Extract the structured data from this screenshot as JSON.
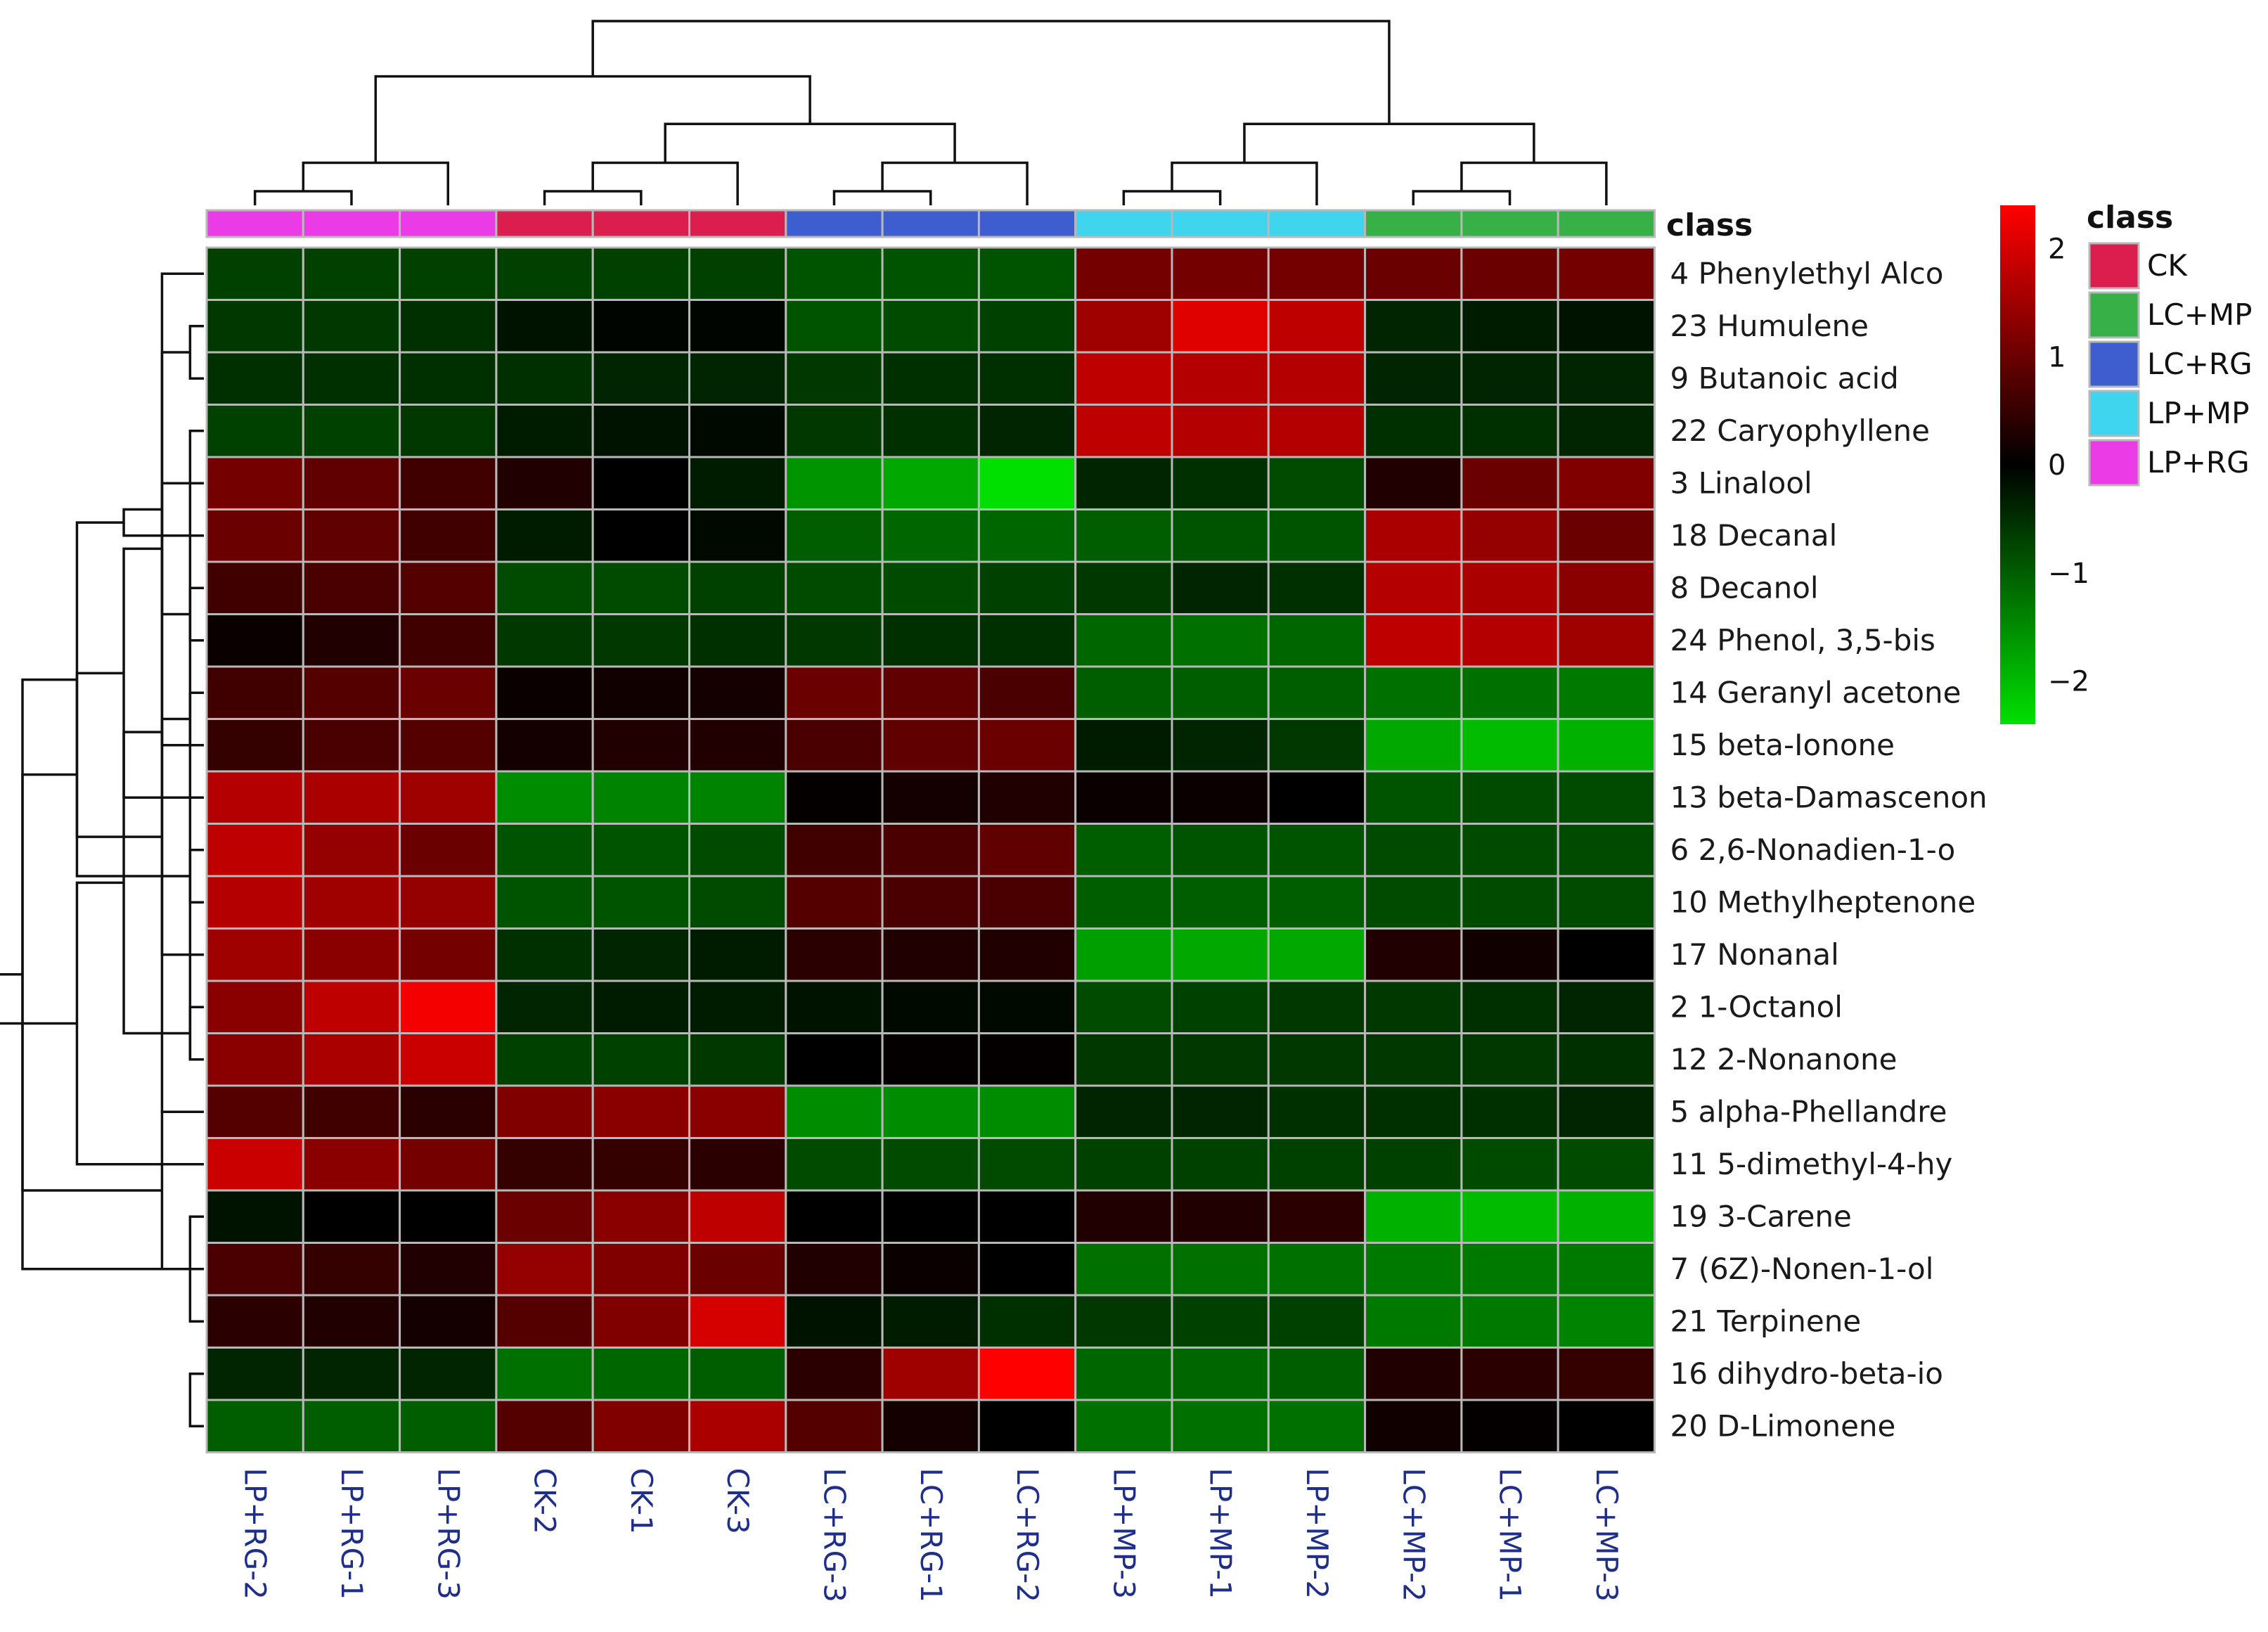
{
  "chart_data": {
    "type": "heatmap",
    "title": "",
    "class_bar_title": "class",
    "legend_title": "class",
    "columns": [
      "LP+RG-2",
      "LP+RG-1",
      "LP+RG-3",
      "CK-2",
      "CK-1",
      "CK-3",
      "LC+RG-3",
      "LC+RG-1",
      "LC+RG-2",
      "LP+MP-3",
      "LP+MP-1",
      "LP+MP-2",
      "LC+MP-2",
      "LC+MP-1",
      "LC+MP-3"
    ],
    "column_classes": [
      "LP+RG",
      "LP+RG",
      "LP+RG",
      "CK",
      "CK",
      "CK",
      "LC+RG",
      "LC+RG",
      "LC+RG",
      "LP+MP",
      "LP+MP",
      "LP+MP",
      "LC+MP",
      "LC+MP",
      "LC+MP"
    ],
    "rows": [
      "4 Phenylethyl Alco",
      "23 Humulene",
      "9 Butanoic acid",
      "22 Caryophyllene",
      "3 Linalool",
      "18 Decanal",
      "8 Decanol",
      "24 Phenol, 3,5-bis",
      "14 Geranyl acetone",
      "15 beta-Ionone",
      "13 beta-Damascenon",
      "6 2,6-Nonadien-1-o",
      "10 Methylheptenone",
      "17 Nonanal",
      "2 1-Octanol",
      "12 2-Nonanone",
      "5 alpha-Phellandre",
      "11 5-dimethyl-4-hy",
      "19 3-Carene",
      "7 (6Z)-Nonen-1-ol",
      "21 Terpinene",
      "16 dihydro-beta-io",
      "20 D-Limonene"
    ],
    "values": [
      [
        -0.7,
        -0.7,
        -0.7,
        -0.7,
        -0.7,
        -0.7,
        -0.9,
        -0.9,
        -0.9,
        1.1,
        1.1,
        1.1,
        1.0,
        1.0,
        1.1
      ],
      [
        -0.6,
        -0.6,
        -0.5,
        -0.2,
        -0.05,
        -0.05,
        -0.9,
        -0.8,
        -0.7,
        1.5,
        2.1,
        1.8,
        -0.4,
        -0.3,
        -0.2
      ],
      [
        -0.5,
        -0.5,
        -0.5,
        -0.5,
        -0.4,
        -0.4,
        -0.6,
        -0.5,
        -0.5,
        1.8,
        1.7,
        1.7,
        -0.4,
        -0.4,
        -0.4
      ],
      [
        -0.7,
        -0.7,
        -0.6,
        -0.3,
        -0.2,
        -0.1,
        -0.6,
        -0.5,
        -0.4,
        1.8,
        1.7,
        1.7,
        -0.5,
        -0.5,
        -0.4
      ],
      [
        1.1,
        0.9,
        0.6,
        0.3,
        0.0,
        -0.3,
        -1.6,
        -1.8,
        -2.4,
        -0.4,
        -0.5,
        -0.8,
        0.3,
        1.0,
        1.2
      ],
      [
        1.0,
        0.9,
        0.6,
        -0.3,
        0.0,
        -0.1,
        -1.0,
        -1.1,
        -1.1,
        -1.0,
        -0.9,
        -0.9,
        1.6,
        1.4,
        1.0
      ],
      [
        0.6,
        0.7,
        0.8,
        -0.8,
        -0.8,
        -0.7,
        -0.8,
        -0.8,
        -0.7,
        -0.6,
        -0.4,
        -0.5,
        1.7,
        1.6,
        1.3
      ],
      [
        0.1,
        0.3,
        0.6,
        -0.6,
        -0.6,
        -0.5,
        -0.6,
        -0.5,
        -0.5,
        -1.1,
        -1.2,
        -1.1,
        1.8,
        1.7,
        1.5
      ],
      [
        0.6,
        0.8,
        1.0,
        0.1,
        0.15,
        0.2,
        1.0,
        0.9,
        0.7,
        -1.0,
        -1.0,
        -1.0,
        -1.2,
        -1.2,
        -1.3
      ],
      [
        0.5,
        0.7,
        0.8,
        0.2,
        0.3,
        0.3,
        0.7,
        0.9,
        1.0,
        -0.3,
        -0.4,
        -0.6,
        -1.8,
        -2.0,
        -1.9
      ],
      [
        1.7,
        1.6,
        1.5,
        -1.5,
        -1.4,
        -1.4,
        0.05,
        0.2,
        0.3,
        0.1,
        0.1,
        0.0,
        -0.9,
        -0.8,
        -0.8
      ],
      [
        1.8,
        1.4,
        1.0,
        -0.9,
        -0.9,
        -0.8,
        0.6,
        0.7,
        0.9,
        -1.0,
        -0.9,
        -0.9,
        -0.8,
        -0.8,
        -0.8
      ],
      [
        1.7,
        1.5,
        1.4,
        -0.9,
        -0.9,
        -0.8,
        0.8,
        0.7,
        0.7,
        -1.0,
        -1.0,
        -1.0,
        -0.8,
        -0.8,
        -0.8
      ],
      [
        1.5,
        1.3,
        1.1,
        -0.5,
        -0.4,
        -0.3,
        0.4,
        0.3,
        0.3,
        -1.7,
        -1.8,
        -1.8,
        0.3,
        0.15,
        0.0
      ],
      [
        1.3,
        1.8,
        2.3,
        -0.4,
        -0.3,
        -0.3,
        -0.2,
        -0.1,
        -0.1,
        -0.8,
        -0.7,
        -0.6,
        -0.6,
        -0.5,
        -0.4
      ],
      [
        1.3,
        1.6,
        1.9,
        -0.7,
        -0.7,
        -0.6,
        0.0,
        0.05,
        0.05,
        -0.6,
        -0.6,
        -0.6,
        -0.6,
        -0.6,
        -0.5
      ],
      [
        0.8,
        0.6,
        0.4,
        1.2,
        1.3,
        1.3,
        -1.5,
        -1.5,
        -1.5,
        -0.4,
        -0.4,
        -0.5,
        -0.5,
        -0.5,
        -0.4
      ],
      [
        1.9,
        1.3,
        1.1,
        0.5,
        0.5,
        0.4,
        -0.8,
        -0.8,
        -0.8,
        -0.7,
        -0.7,
        -0.7,
        -0.7,
        -0.8,
        -0.8
      ],
      [
        -0.2,
        0.0,
        0.0,
        1.0,
        1.3,
        1.8,
        0.0,
        0.0,
        0.0,
        0.3,
        0.3,
        0.4,
        -1.9,
        -2.0,
        -1.9
      ],
      [
        0.7,
        0.5,
        0.3,
        1.4,
        1.2,
        1.0,
        0.3,
        0.1,
        0.0,
        -1.2,
        -1.2,
        -1.2,
        -1.3,
        -1.3,
        -1.3
      ],
      [
        0.4,
        0.3,
        0.2,
        0.8,
        1.2,
        2.0,
        -0.2,
        -0.3,
        -0.5,
        -0.6,
        -0.7,
        -0.7,
        -1.3,
        -1.3,
        -1.4
      ],
      [
        -0.4,
        -0.4,
        -0.4,
        -1.2,
        -1.1,
        -1.0,
        0.4,
        1.5,
        2.5,
        -1.1,
        -1.1,
        -1.0,
        0.3,
        0.4,
        0.5
      ],
      [
        -1.0,
        -1.0,
        -1.0,
        0.8,
        1.2,
        1.6,
        0.8,
        0.2,
        0.0,
        -1.2,
        -1.2,
        -1.2,
        0.15,
        0.05,
        0.0
      ]
    ],
    "color_scale": {
      "ticks": [
        "2",
        "1",
        "0",
        "−1",
        "−2"
      ],
      "tick_values": [
        2,
        1,
        0,
        -1,
        -2
      ],
      "min": -2.4,
      "max": 2.4,
      "low_color": "#00e000",
      "mid_color": "#000000",
      "high_color": "#ff0000"
    },
    "classes": [
      {
        "name": "CK",
        "color": "#dc1e4e"
      },
      {
        "name": "LC+MP",
        "color": "#38b048"
      },
      {
        "name": "LC+RG",
        "color": "#3e5dcf"
      },
      {
        "name": "LP+MP",
        "color": "#3fd5ee"
      },
      {
        "name": "LP+RG",
        "color": "#ea3be6"
      }
    ],
    "column_tree": [
      [
        0,
        1
      ],
      [
        15,
        2
      ],
      [
        3,
        4
      ],
      [
        17,
        5
      ],
      [
        6,
        7
      ],
      [
        19,
        8
      ],
      [
        18,
        20
      ],
      [
        16,
        21
      ],
      [
        9,
        10
      ],
      [
        23,
        11
      ],
      [
        12,
        13
      ],
      [
        25,
        14
      ],
      [
        24,
        26
      ],
      [
        22,
        27
      ]
    ],
    "row_tree": [
      [
        1,
        2
      ],
      [
        15,
        3
      ],
      [
        23,
        16
      ],
      [
        0,
        24
      ],
      [
        6,
        7
      ],
      [
        26,
        5
      ],
      [
        27,
        4
      ],
      [
        8,
        9
      ],
      [
        11,
        12
      ],
      [
        29,
        10
      ],
      [
        13,
        30
      ],
      [
        14,
        15
      ],
      [
        31,
        32
      ],
      [
        28,
        33
      ],
      [
        25,
        34
      ],
      [
        20,
        18
      ],
      [
        19,
        36
      ],
      [
        17,
        37
      ],
      [
        16,
        38
      ],
      [
        21,
        22
      ],
      [
        39,
        40
      ],
      [
        35,
        41
      ]
    ]
  }
}
